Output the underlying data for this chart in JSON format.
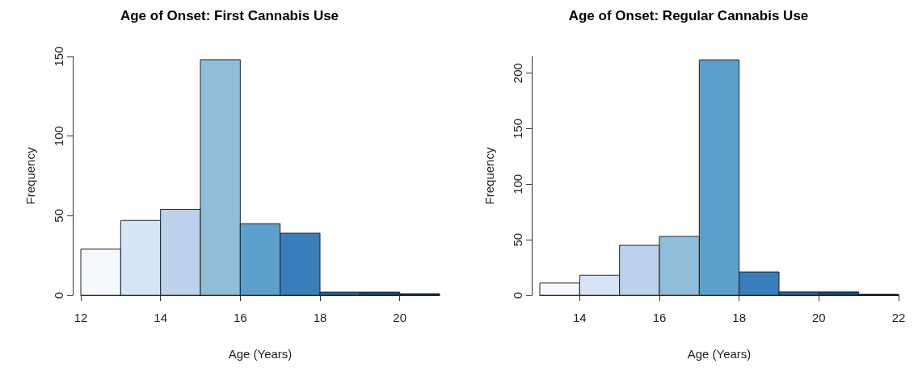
{
  "chart_data": [
    {
      "type": "histogram",
      "title": "Age of Onset: First Cannabis Use",
      "xlabel": "Age (Years)",
      "ylabel": "Frequency",
      "bins": [
        12,
        13,
        14,
        15,
        16,
        17,
        18,
        19,
        20,
        21
      ],
      "values": [
        29,
        47,
        54,
        148,
        45,
        39,
        2,
        2,
        1
      ],
      "colors": [
        "#f5f9fe",
        "#d6e5f5",
        "#bcd1ea",
        "#8fbdda",
        "#5b9fcc",
        "#377ebb",
        "#1f5fa8",
        "#0e4690",
        "#08306b"
      ],
      "xlim": [
        12,
        21
      ],
      "ylim": [
        0,
        150
      ],
      "xticks": [
        12,
        14,
        16,
        18,
        20
      ],
      "yticks": [
        0,
        50,
        100,
        150
      ]
    },
    {
      "type": "histogram",
      "title": "Age of Onset: Regular Cannabis Use",
      "xlabel": "Age (Years)",
      "ylabel": "Frequency",
      "bins": [
        13,
        14,
        15,
        16,
        17,
        18,
        19,
        20,
        21,
        22
      ],
      "values": [
        11,
        18,
        45,
        53,
        212,
        21,
        3,
        3,
        1
      ],
      "colors": [
        "#f5f9fe",
        "#d6e5f5",
        "#bcd1ea",
        "#8fbdda",
        "#5b9fcc",
        "#377ebb",
        "#1f5fa8",
        "#0e4690",
        "#08306b"
      ],
      "xlim": [
        13,
        22
      ],
      "ylim": [
        0,
        215
      ],
      "xticks": [
        14,
        16,
        18,
        20,
        22
      ],
      "yticks": [
        0,
        50,
        100,
        150,
        200
      ]
    }
  ]
}
